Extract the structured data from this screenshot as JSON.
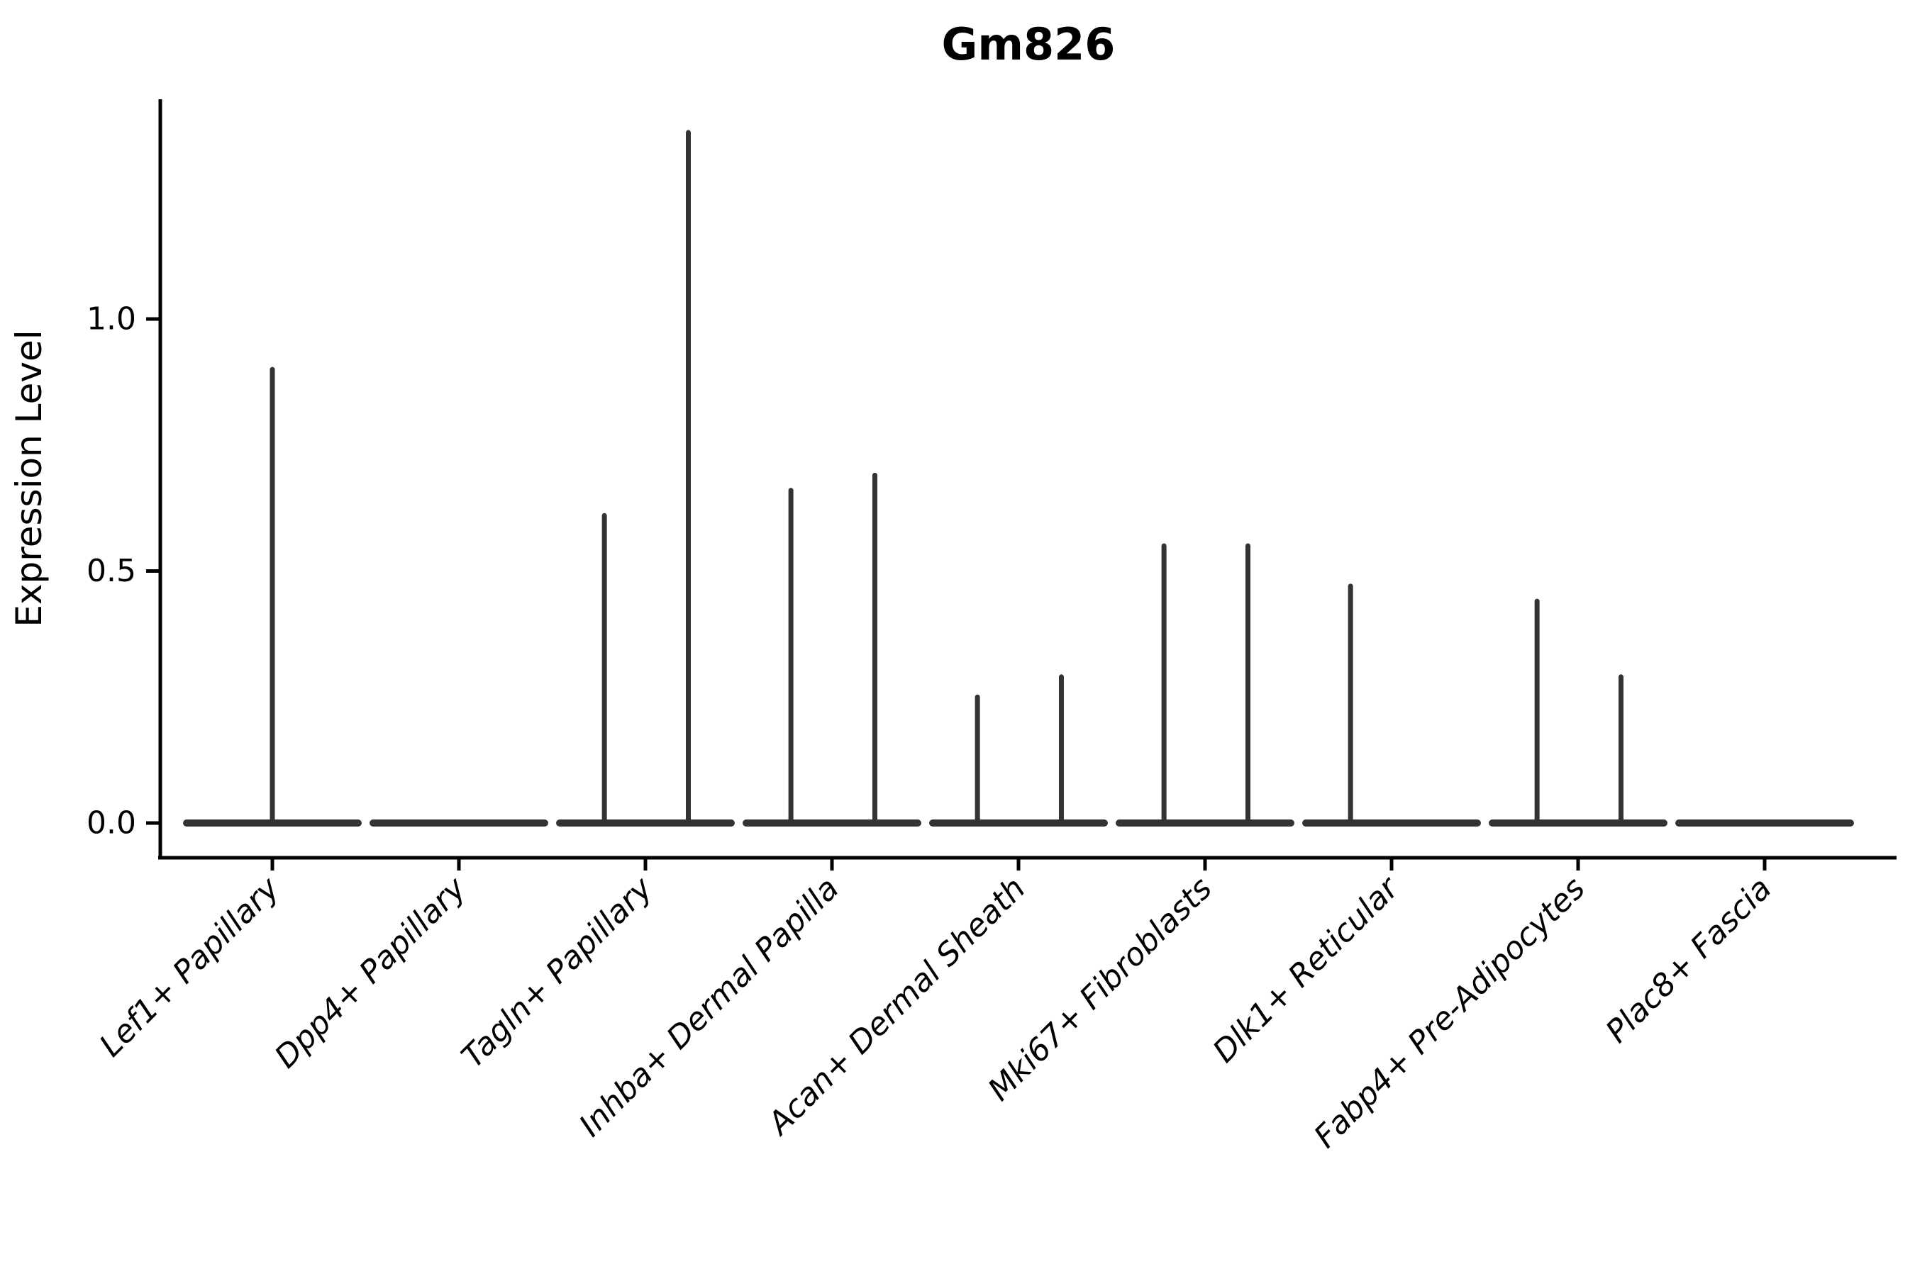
{
  "figure": {
    "title": "Gm826",
    "ylabel": "Expression Level",
    "background": "#ffffff"
  },
  "colors": {
    "violin_stroke": "#333333",
    "axis": "#000000",
    "text": "#000000"
  },
  "chart_data": {
    "type": "violin",
    "title": "Gm826",
    "xlabel": "",
    "ylabel": "Expression Level",
    "ylim": [
      -0.07,
      1.44
    ],
    "yticks": [
      {
        "label": "0.0",
        "value": 0.0
      },
      {
        "label": "0.5",
        "value": 0.5
      },
      {
        "label": "1.0",
        "value": 1.0
      }
    ],
    "grid": false,
    "legend_position": "none",
    "categories": [
      "Lef1+ Papillary",
      "Dpp4+ Papillary",
      "Tagln+ Papillary",
      "Inhba+ Dermal Papilla",
      "Acan+ Dermal Sheath",
      "Mki67+ Fibroblasts",
      "Dlk1+ Reticular",
      "Fabp4+ Pre-Adipocytes",
      "Plac8+ Fascia"
    ],
    "violin_half_width": 0.46,
    "violins": [
      {
        "category": "Lef1+ Papillary",
        "baseline_value": 0.0,
        "stems": [
          {
            "x_offset": 0.0,
            "max_value": 0.9
          }
        ]
      },
      {
        "category": "Dpp4+ Papillary",
        "baseline_value": 0.0,
        "stems": []
      },
      {
        "category": "Tagln+ Papillary",
        "baseline_value": 0.0,
        "stems": [
          {
            "x_offset": -0.22,
            "max_value": 0.61
          },
          {
            "x_offset": 0.23,
            "max_value": 1.37
          }
        ]
      },
      {
        "category": "Inhba+ Dermal Papilla",
        "baseline_value": 0.0,
        "stems": [
          {
            "x_offset": -0.22,
            "max_value": 0.66
          },
          {
            "x_offset": 0.23,
            "max_value": 0.69
          }
        ]
      },
      {
        "category": "Acan+ Dermal Sheath",
        "baseline_value": 0.0,
        "stems": [
          {
            "x_offset": -0.22,
            "max_value": 0.25
          },
          {
            "x_offset": 0.23,
            "max_value": 0.29
          }
        ]
      },
      {
        "category": "Mki67+ Fibroblasts",
        "baseline_value": 0.0,
        "stems": [
          {
            "x_offset": -0.22,
            "max_value": 0.55
          },
          {
            "x_offset": 0.23,
            "max_value": 0.55
          }
        ]
      },
      {
        "category": "Dlk1+ Reticular",
        "baseline_value": 0.0,
        "stems": [
          {
            "x_offset": -0.22,
            "max_value": 0.47
          }
        ]
      },
      {
        "category": "Fabp4+ Pre-Adipocytes",
        "baseline_value": 0.0,
        "stems": [
          {
            "x_offset": -0.22,
            "max_value": 0.44
          },
          {
            "x_offset": 0.23,
            "max_value": 0.29
          }
        ]
      },
      {
        "category": "Plac8+ Fascia",
        "baseline_value": 0.0,
        "stems": []
      }
    ]
  }
}
